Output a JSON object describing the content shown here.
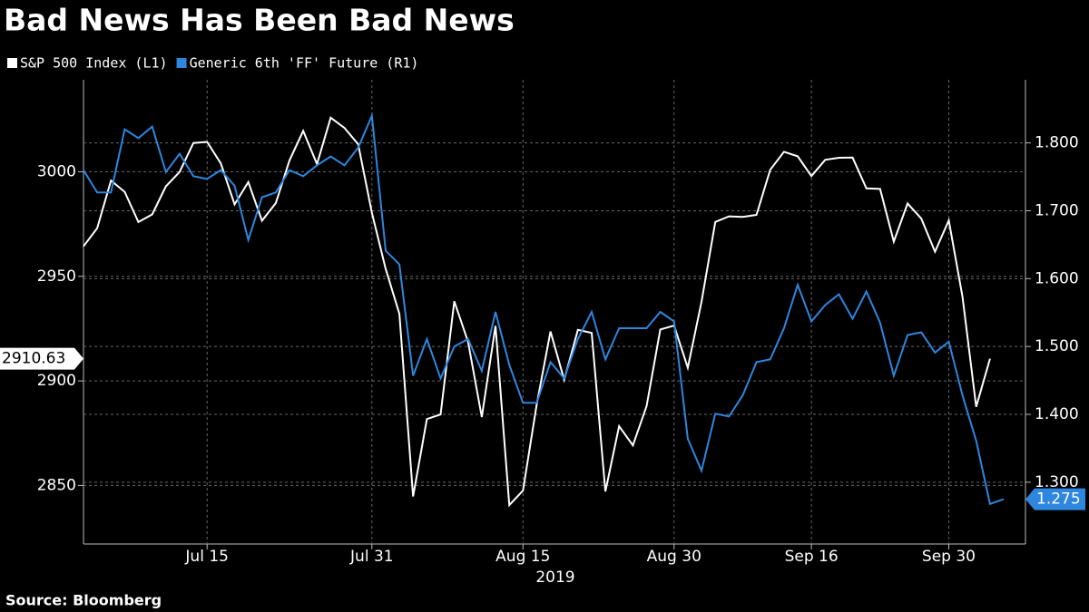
{
  "chart_data": {
    "type": "line",
    "title": "Bad News Has Been Bad News",
    "source": "Source: Bloomberg",
    "xlabel": "2019",
    "categories": [
      null,
      null,
      null,
      null,
      null,
      null,
      null,
      null,
      null,
      "Jul 15",
      null,
      null,
      null,
      null,
      null,
      null,
      null,
      null,
      null,
      null,
      null,
      "Jul 31",
      null,
      null,
      null,
      null,
      null,
      null,
      null,
      null,
      null,
      null,
      "Aug 15",
      null,
      null,
      null,
      null,
      null,
      null,
      null,
      null,
      null,
      null,
      "Aug 30",
      null,
      null,
      null,
      null,
      null,
      null,
      null,
      null,
      null,
      "Sep 16",
      null,
      null,
      null,
      null,
      null,
      null,
      null,
      null,
      null,
      "Sep 30",
      null,
      null,
      null,
      null
    ],
    "series": [
      {
        "name": "S&P 500 Index  (L1)",
        "color": "#ffffff",
        "axis": "y",
        "values": [
          2964.33,
          2973.01,
          2995.82,
          2990.41,
          2975.95,
          2979.63,
          2993.07,
          2999.91,
          3013.77,
          3014.3,
          3004.04,
          2984.42,
          2995.11,
          2976.61,
          2985.03,
          3005.47,
          3019.56,
          3003.67,
          3025.86,
          3020.97,
          3013.18,
          2980.38,
          2953.56,
          2932.05,
          2844.74,
          2881.77,
          2883.98,
          2938.09,
          2918.65,
          2882.7,
          2926.32,
          2840.6,
          2847.6,
          2888.68,
          2923.65,
          2900.51,
          2924.43,
          2922.95,
          2847.11,
          2878.38,
          2869.16,
          2887.94,
          2924.58,
          2926.46,
          2906.27,
          2937.78,
          2976.0,
          2978.71,
          2978.43,
          2979.39,
          3000.93,
          3009.57,
          3007.39,
          2997.96,
          3005.7,
          3006.73,
          3006.79,
          2992.07,
          2991.78,
          2966.6,
          2984.87,
          2977.62,
          2961.79,
          2976.74,
          2940.25,
          2887.61,
          2910.63,
          null
        ]
      },
      {
        "name": "Generic 6th 'FF' Future  (R1)",
        "color": "#2e86de",
        "axis": "y2",
        "values": [
          1.76,
          1.727,
          1.727,
          1.82,
          1.807,
          1.824,
          1.757,
          1.784,
          1.751,
          1.747,
          1.76,
          1.737,
          1.657,
          1.72,
          1.727,
          1.76,
          1.751,
          1.767,
          1.78,
          1.767,
          1.793,
          1.84,
          1.641,
          1.621,
          1.457,
          1.511,
          1.453,
          1.5,
          1.511,
          1.464,
          1.551,
          1.473,
          1.417,
          1.417,
          1.477,
          1.453,
          1.511,
          1.551,
          1.481,
          1.527,
          1.527,
          1.527,
          1.551,
          1.537,
          1.364,
          1.317,
          1.401,
          1.397,
          1.428,
          1.477,
          1.481,
          1.527,
          1.591,
          1.537,
          1.561,
          1.577,
          1.541,
          1.581,
          1.535,
          1.457,
          1.517,
          1.521,
          1.491,
          1.507,
          1.428,
          1.361,
          1.268,
          1.275
        ]
      }
    ],
    "ylim": [
      2822,
      3044
    ],
    "yticks": [
      2850,
      2900,
      2950,
      3000
    ],
    "y2lim": [
      1.209,
      1.893
    ],
    "y2ticks": [
      {
        "value": 1.3,
        "label": "1.300"
      },
      {
        "value": 1.4,
        "label": "1.400"
      },
      {
        "value": 1.5,
        "label": "1.500"
      },
      {
        "value": 1.6,
        "label": "1.600"
      },
      {
        "value": 1.7,
        "label": "1.700"
      },
      {
        "value": 1.8,
        "label": "1.800"
      }
    ],
    "grid": true
  }
}
